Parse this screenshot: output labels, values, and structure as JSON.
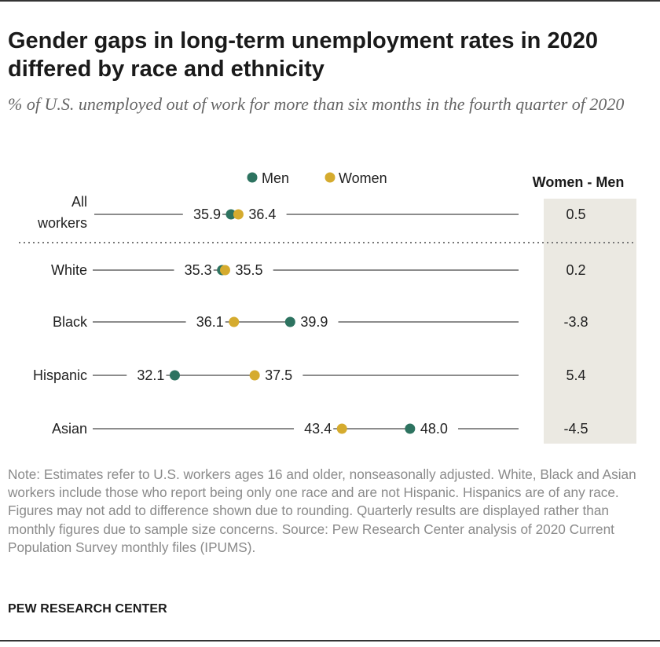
{
  "title": "Gender gaps in long-term unemployment rates in 2020 differed by race and ethnicity",
  "subtitle": "% of U.S. unemployed out of work for more than six months in the fourth quarter of 2020",
  "note": "Note: Estimates refer to U.S. workers ages 16 and older, nonseasonally adjusted. White, Black and Asian workers include those who report being only one race and are not Hispanic. Hispanics are of any race. Figures may not add to difference shown due to rounding. Quarterly results are displayed rather than monthly figures due to sample size concerns.",
  "source": "Source: Pew Research Center analysis of 2020 Current Population Survey monthly files (IPUMS).",
  "brand": "PEW RESEARCH CENTER",
  "colors": {
    "men": "#2d7360",
    "women": "#d5ab2e",
    "line": "#8c8c8c",
    "diff_bg": "#ebe9e2"
  },
  "chart_data": {
    "type": "dot",
    "legend": {
      "men": "Men",
      "women": "Women"
    },
    "diff_header": "Women - Men",
    "categories": [
      "All workers",
      "White",
      "Black",
      "Hispanic",
      "Asian"
    ],
    "series": [
      {
        "name": "Men",
        "values": [
          35.9,
          35.3,
          39.9,
          32.1,
          48.0
        ],
        "labels": [
          "35.9",
          "35.3",
          "39.9",
          "32.1",
          "48.0"
        ]
      },
      {
        "name": "Women",
        "values": [
          36.4,
          35.5,
          36.1,
          37.5,
          43.4
        ],
        "labels": [
          "36.4",
          "35.5",
          "36.1",
          "37.5",
          "43.4"
        ]
      }
    ],
    "differences": [
      "0.5",
      "0.2",
      "-3.8",
      "5.4",
      "-4.5"
    ]
  }
}
